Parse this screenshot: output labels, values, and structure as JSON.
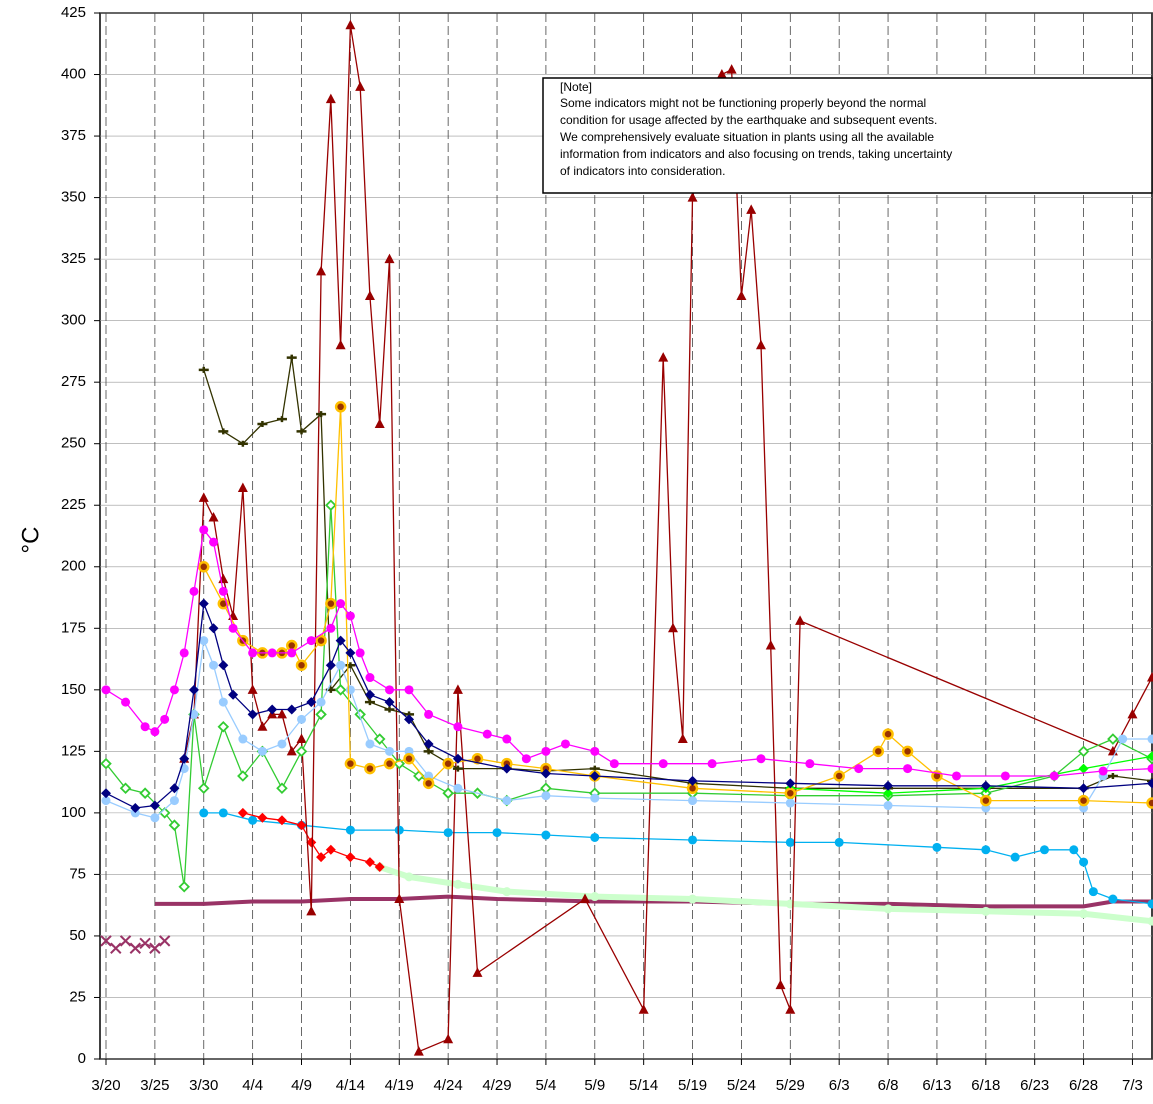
{
  "chart_data": {
    "type": "line",
    "y_label": "°C",
    "ylim": [
      0,
      425
    ],
    "yticks": [
      0,
      25,
      50,
      75,
      100,
      125,
      150,
      175,
      200,
      225,
      250,
      275,
      300,
      325,
      350,
      375,
      400,
      425
    ],
    "xlim": [
      "3/20",
      "7/5"
    ],
    "xticks": [
      "3/20",
      "3/25",
      "3/30",
      "4/4",
      "4/9",
      "4/14",
      "4/19",
      "4/24",
      "4/29",
      "5/4",
      "5/9",
      "5/14",
      "5/19",
      "5/24",
      "5/29",
      "6/3",
      "6/8",
      "6/13",
      "6/18",
      "6/23",
      "6/28",
      "7/3"
    ],
    "grid": true,
    "note": {
      "title": "[Note]",
      "lines": [
        "Some indicators might not be functioning properly beyond the normal",
        "condition for usage affected by the earthquake and subsequent events.",
        "We comprehensively evaluate situation in plants using all the available",
        "information from indicators and also focusing on trends, taking uncertainty",
        "of indicators into consideration."
      ]
    },
    "series": [
      {
        "color": "#993366",
        "marker": "none",
        "x": [
          "3/25",
          "3/30",
          "4/4",
          "4/9",
          "4/14",
          "4/19",
          "4/24",
          "4/29",
          "5/9",
          "5/19",
          "5/29",
          "6/8",
          "6/18",
          "6/28",
          "7/1",
          "7/5"
        ],
        "values": [
          63,
          63,
          64,
          64,
          65,
          65,
          66,
          65,
          64,
          64,
          63,
          63,
          62,
          62,
          64,
          64
        ]
      },
      {
        "color": "#993366",
        "marker": "x",
        "x": [
          "3/20",
          "3/21",
          "3/22",
          "3/23",
          "3/24",
          "3/25",
          "3/26"
        ],
        "values": [
          48,
          45,
          48,
          45,
          47,
          45,
          48
        ]
      },
      {
        "color": "#ccffcc",
        "marker": "circle",
        "x": [
          "4/17",
          "4/20",
          "4/25",
          "4/30",
          "5/9",
          "5/19",
          "5/29",
          "6/8",
          "6/18",
          "6/28",
          "7/5"
        ],
        "values": [
          78,
          74,
          71,
          68,
          66,
          65,
          63,
          61,
          60,
          59,
          56
        ]
      },
      {
        "color": "#00b0f0",
        "marker": "circle",
        "x": [
          "3/30",
          "4/1",
          "4/4",
          "4/9",
          "4/14",
          "4/19",
          "4/24",
          "4/29",
          "5/4",
          "5/9",
          "5/19",
          "5/29",
          "6/3",
          "6/13",
          "6/18",
          "6/21",
          "6/24",
          "6/27",
          "6/28",
          "6/29",
          "7/1",
          "7/5"
        ],
        "values": [
          100,
          100,
          97,
          95,
          93,
          93,
          92,
          92,
          91,
          90,
          89,
          88,
          88,
          86,
          85,
          82,
          85,
          85,
          80,
          68,
          65,
          63
        ]
      },
      {
        "color": "#ff0000",
        "marker": "diamond",
        "x": [
          "4/3",
          "4/5",
          "4/7",
          "4/9",
          "4/10",
          "4/11",
          "4/12",
          "4/14",
          "4/16",
          "4/17"
        ],
        "values": [
          100,
          98,
          97,
          95,
          88,
          82,
          85,
          82,
          80,
          78
        ]
      },
      {
        "color": "#990000",
        "marker": "triangle",
        "x": [
          "3/28",
          "3/29",
          "3/30",
          "3/31",
          "4/1",
          "4/2",
          "4/3",
          "4/4",
          "4/5",
          "4/6",
          "4/7",
          "4/8",
          "4/9",
          "4/10",
          "4/11",
          "4/12",
          "4/13",
          "4/14",
          "4/15",
          "4/16",
          "4/17",
          "4/18",
          "4/19",
          "4/21",
          "4/24",
          "4/25",
          "4/27",
          "5/8",
          "5/14",
          "5/16",
          "5/17",
          "5/18",
          "5/19",
          "5/22",
          "5/23",
          "5/24",
          "5/25",
          "5/26",
          "5/27",
          "5/28",
          "5/29",
          "5/30",
          "7/1",
          "7/3",
          "7/5"
        ],
        "values": [
          122,
          140,
          228,
          220,
          195,
          180,
          232,
          150,
          135,
          140,
          140,
          125,
          130,
          60,
          320,
          390,
          290,
          420,
          395,
          310,
          258,
          325,
          65,
          3,
          8,
          150,
          35,
          65,
          20,
          285,
          175,
          130,
          350,
          400,
          402,
          310,
          345,
          290,
          168,
          30,
          20,
          178,
          125,
          140,
          155
        ]
      },
      {
        "color": "#333300",
        "marker": "dash",
        "x": [
          "3/30",
          "4/1",
          "4/3",
          "4/5",
          "4/7",
          "4/8",
          "4/9",
          "4/11",
          "4/12",
          "4/14",
          "4/16",
          "4/18",
          "4/20",
          "4/22",
          "4/25",
          "4/30",
          "5/4",
          "5/9",
          "5/19",
          "5/29",
          "6/8",
          "6/18",
          "6/28",
          "7/1",
          "7/5"
        ],
        "values": [
          280,
          255,
          250,
          258,
          260,
          285,
          255,
          262,
          150,
          160,
          145,
          142,
          140,
          125,
          118,
          118,
          117,
          118,
          112,
          110,
          110,
          110,
          110,
          115,
          113
        ]
      },
      {
        "color": "#33cc33",
        "marker": "diamond-open",
        "x": [
          "3/20",
          "3/22",
          "3/24",
          "3/26",
          "3/27",
          "3/28",
          "3/29",
          "3/30",
          "4/1",
          "4/3",
          "4/5",
          "4/7",
          "4/9",
          "4/11",
          "4/12",
          "4/13",
          "4/15",
          "4/17",
          "4/19",
          "4/21",
          "4/24",
          "4/27",
          "4/30",
          "5/4",
          "5/9",
          "5/19",
          "5/29",
          "6/8",
          "6/18",
          "6/25",
          "6/28",
          "7/1",
          "7/5"
        ],
        "values": [
          120,
          110,
          108,
          100,
          95,
          70,
          140,
          110,
          135,
          115,
          125,
          110,
          125,
          140,
          225,
          150,
          140,
          130,
          120,
          115,
          108,
          108,
          105,
          110,
          108,
          108,
          107,
          107,
          108,
          115,
          125,
          130,
          122
        ]
      },
      {
        "color": "#00ff00",
        "marker": "diamond",
        "x": [
          "5/29",
          "6/8",
          "6/18",
          "6/28",
          "7/5"
        ],
        "values": [
          110,
          108,
          110,
          118,
          123
        ]
      },
      {
        "color": "#99ccff",
        "marker": "circle",
        "x": [
          "3/20",
          "3/23",
          "3/25",
          "3/27",
          "3/28",
          "3/29",
          "3/30",
          "3/31",
          "4/1",
          "4/3",
          "4/5",
          "4/7",
          "4/9",
          "4/11",
          "4/13",
          "4/14",
          "4/16",
          "4/18",
          "4/20",
          "4/22",
          "4/25",
          "4/30",
          "5/4",
          "5/9",
          "5/19",
          "5/29",
          "6/8",
          "6/18",
          "6/28",
          "6/30",
          "7/2",
          "7/5"
        ],
        "values": [
          105,
          100,
          98,
          105,
          118,
          140,
          170,
          160,
          145,
          130,
          125,
          128,
          138,
          145,
          160,
          150,
          128,
          125,
          125,
          115,
          110,
          105,
          107,
          106,
          105,
          104,
          103,
          102,
          102,
          115,
          130,
          130
        ]
      },
      {
        "color": "#ffc000",
        "marker": "circle-dot",
        "x": [
          "3/30",
          "4/1",
          "4/3",
          "4/5",
          "4/7",
          "4/8",
          "4/9",
          "4/11",
          "4/12",
          "4/13",
          "4/14",
          "4/16",
          "4/18",
          "4/20",
          "4/22",
          "4/24",
          "4/27",
          "4/30",
          "5/4",
          "5/9",
          "5/19",
          "5/29",
          "6/3",
          "6/7",
          "6/8",
          "6/10",
          "6/13",
          "6/18",
          "6/28",
          "7/5"
        ],
        "values": [
          200,
          185,
          170,
          165,
          165,
          168,
          160,
          170,
          185,
          265,
          120,
          118,
          120,
          122,
          112,
          120,
          122,
          120,
          118,
          115,
          110,
          108,
          115,
          125,
          132,
          125,
          115,
          105,
          105,
          104
        ]
      },
      {
        "color": "#000080",
        "marker": "diamond",
        "x": [
          "3/20",
          "3/23",
          "3/25",
          "3/27",
          "3/28",
          "3/29",
          "3/30",
          "3/31",
          "4/1",
          "4/2",
          "4/4",
          "4/6",
          "4/8",
          "4/10",
          "4/12",
          "4/13",
          "4/14",
          "4/16",
          "4/18",
          "4/20",
          "4/22",
          "4/25",
          "4/30",
          "5/4",
          "5/9",
          "5/19",
          "5/29",
          "6/8",
          "6/18",
          "6/28",
          "7/5"
        ],
        "values": [
          108,
          102,
          103,
          110,
          122,
          150,
          185,
          175,
          160,
          148,
          140,
          142,
          142,
          145,
          160,
          170,
          165,
          148,
          145,
          138,
          128,
          122,
          118,
          116,
          115,
          113,
          112,
          111,
          111,
          110,
          112
        ]
      },
      {
        "color": "#ff00ff",
        "marker": "circle",
        "x": [
          "3/20",
          "3/22",
          "3/24",
          "3/25",
          "3/26",
          "3/27",
          "3/28",
          "3/29",
          "3/30",
          "3/31",
          "4/1",
          "4/2",
          "4/4",
          "4/6",
          "4/8",
          "4/10",
          "4/12",
          "4/13",
          "4/14",
          "4/15",
          "4/16",
          "4/18",
          "4/20",
          "4/22",
          "4/25",
          "4/28",
          "4/30",
          "5/2",
          "5/4",
          "5/6",
          "5/9",
          "5/11",
          "5/16",
          "5/21",
          "5/26",
          "5/31",
          "6/5",
          "6/10",
          "6/15",
          "6/20",
          "6/25",
          "6/30",
          "7/5"
        ],
        "values": [
          150,
          145,
          135,
          133,
          138,
          150,
          165,
          190,
          215,
          210,
          190,
          175,
          165,
          165,
          165,
          170,
          175,
          185,
          180,
          165,
          155,
          150,
          150,
          140,
          135,
          132,
          130,
          122,
          125,
          128,
          125,
          120,
          120,
          120,
          122,
          120,
          118,
          118,
          115,
          115,
          115,
          117,
          118
        ]
      }
    ]
  }
}
